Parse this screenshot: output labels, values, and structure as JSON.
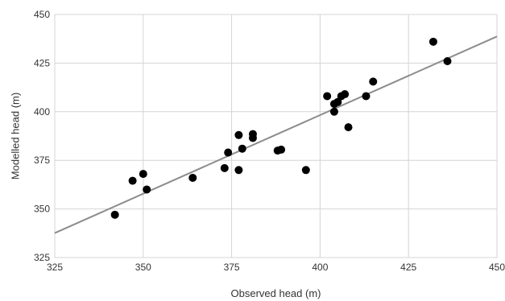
{
  "chart_data": {
    "type": "scatter",
    "title": "",
    "xlabel": "Observed head (m)",
    "ylabel": "Modelled head (m)",
    "xlim": [
      325,
      450
    ],
    "ylim": [
      325,
      450
    ],
    "xticks": [
      325,
      350,
      375,
      400,
      425,
      450
    ],
    "yticks": [
      325,
      350,
      375,
      400,
      425,
      450
    ],
    "grid": true,
    "legend": "none",
    "colors": {
      "points": "#000000",
      "line": "#8c8c8c",
      "grid": "#d4d4d4",
      "text": "#333333"
    },
    "points": [
      {
        "x": 342,
        "y": 347
      },
      {
        "x": 347,
        "y": 364.5
      },
      {
        "x": 350,
        "y": 368
      },
      {
        "x": 351,
        "y": 360
      },
      {
        "x": 364,
        "y": 366
      },
      {
        "x": 373,
        "y": 371
      },
      {
        "x": 374,
        "y": 379
      },
      {
        "x": 377,
        "y": 388
      },
      {
        "x": 377,
        "y": 370
      },
      {
        "x": 378,
        "y": 381
      },
      {
        "x": 381,
        "y": 388.5
      },
      {
        "x": 381,
        "y": 386.5
      },
      {
        "x": 388,
        "y": 380
      },
      {
        "x": 389,
        "y": 380.5
      },
      {
        "x": 396,
        "y": 370
      },
      {
        "x": 402,
        "y": 408
      },
      {
        "x": 404,
        "y": 400
      },
      {
        "x": 404,
        "y": 404
      },
      {
        "x": 405,
        "y": 405
      },
      {
        "x": 406,
        "y": 408
      },
      {
        "x": 407,
        "y": 409
      },
      {
        "x": 408,
        "y": 392
      },
      {
        "x": 413,
        "y": 408
      },
      {
        "x": 415,
        "y": 415.5
      },
      {
        "x": 432,
        "y": 436
      },
      {
        "x": 436,
        "y": 426
      }
    ],
    "trendline": {
      "x": [
        325,
        450
      ],
      "y": [
        337.6,
        438.7
      ]
    }
  }
}
